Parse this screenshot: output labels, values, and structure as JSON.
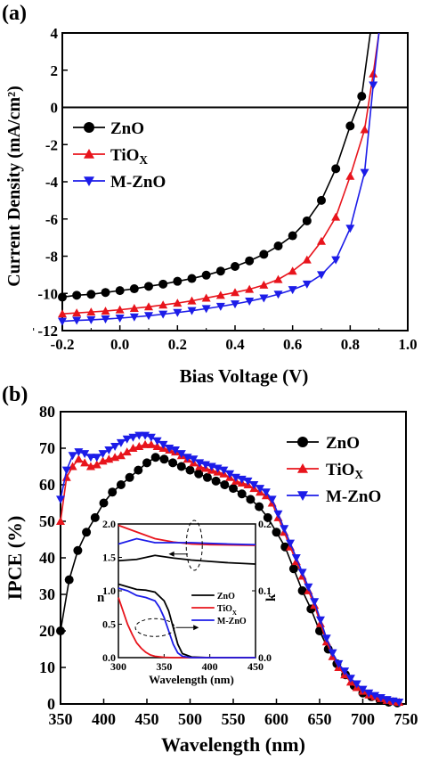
{
  "figure": {
    "panel_a_label": "(a)",
    "panel_b_label": "(b)"
  },
  "chart_data": [
    {
      "id": "a",
      "type": "line",
      "title": "",
      "xlabel": "Bias Voltage (V)",
      "ylabel": "Current Density (mA/cm²)",
      "xlim": [
        -0.2,
        1.0
      ],
      "ylim": [
        -12,
        4
      ],
      "x_ticks": [
        "-0.2",
        "0.0",
        "0.2",
        "0.4",
        "0.6",
        "0.8",
        "1.0"
      ],
      "y_ticks": [
        "-12",
        "-10",
        "-8",
        "-6",
        "-4",
        "-2",
        "0",
        "2",
        "4"
      ],
      "legend_position": "left",
      "series": [
        {
          "name": "ZnO",
          "color": "#000000",
          "marker": "circle",
          "x": [
            -0.2,
            -0.15,
            -0.1,
            -0.05,
            0.0,
            0.05,
            0.1,
            0.15,
            0.2,
            0.25,
            0.3,
            0.35,
            0.4,
            0.45,
            0.5,
            0.55,
            0.6,
            0.65,
            0.7,
            0.75,
            0.8,
            0.84,
            0.87
          ],
          "y": [
            -10.2,
            -10.1,
            -10.05,
            -9.95,
            -9.85,
            -9.75,
            -9.62,
            -9.5,
            -9.35,
            -9.2,
            -9.02,
            -8.8,
            -8.55,
            -8.25,
            -7.9,
            -7.45,
            -6.9,
            -6.1,
            -5.0,
            -3.3,
            -1.0,
            0.6,
            4.0
          ]
        },
        {
          "name": "TiO_X",
          "color": "#e8141c",
          "marker": "triangle-up",
          "x": [
            -0.2,
            -0.15,
            -0.1,
            -0.05,
            0.0,
            0.05,
            0.1,
            0.15,
            0.2,
            0.25,
            0.3,
            0.35,
            0.4,
            0.45,
            0.5,
            0.55,
            0.6,
            0.65,
            0.7,
            0.75,
            0.8,
            0.85,
            0.88,
            0.9
          ],
          "y": [
            -11.1,
            -11.05,
            -11.0,
            -10.95,
            -10.88,
            -10.8,
            -10.72,
            -10.62,
            -10.52,
            -10.4,
            -10.25,
            -10.1,
            -9.95,
            -9.78,
            -9.55,
            -9.25,
            -8.8,
            -8.2,
            -7.2,
            -5.9,
            -3.7,
            -1.2,
            1.8,
            4.0
          ]
        },
        {
          "name": "M-ZnO",
          "color": "#1c1ce8",
          "marker": "triangle-down",
          "x": [
            -0.2,
            -0.15,
            -0.1,
            -0.05,
            0.0,
            0.05,
            0.1,
            0.15,
            0.2,
            0.25,
            0.3,
            0.35,
            0.4,
            0.45,
            0.5,
            0.55,
            0.6,
            0.65,
            0.7,
            0.75,
            0.8,
            0.85,
            0.88,
            0.9
          ],
          "y": [
            -11.5,
            -11.45,
            -11.42,
            -11.38,
            -11.33,
            -11.27,
            -11.2,
            -11.12,
            -11.03,
            -10.93,
            -10.82,
            -10.7,
            -10.57,
            -10.42,
            -10.25,
            -10.05,
            -9.8,
            -9.5,
            -9.0,
            -8.2,
            -6.5,
            -3.5,
            1.2,
            4.0
          ]
        }
      ]
    },
    {
      "id": "b",
      "type": "line",
      "title": "",
      "xlabel": "Wavelength (nm)",
      "ylabel": "IPCE (%)",
      "xlim": [
        350,
        750
      ],
      "ylim": [
        0,
        80
      ],
      "x_ticks": [
        "350",
        "400",
        "450",
        "500",
        "550",
        "600",
        "650",
        "700",
        "750"
      ],
      "y_ticks": [
        "0",
        "10",
        "20",
        "30",
        "40",
        "50",
        "60",
        "70",
        "80"
      ],
      "legend_position": "top-right",
      "series": [
        {
          "name": "ZnO",
          "color": "#000000",
          "marker": "circle",
          "x": [
            350,
            360,
            370,
            380,
            390,
            400,
            410,
            420,
            430,
            440,
            450,
            460,
            470,
            480,
            490,
            500,
            510,
            520,
            530,
            540,
            550,
            560,
            570,
            580,
            590,
            600,
            610,
            620,
            630,
            640,
            650,
            660,
            670,
            680,
            690,
            700,
            710,
            720,
            730,
            740
          ],
          "y": [
            20,
            34,
            42,
            47,
            51,
            55,
            58,
            60,
            62,
            64,
            66,
            67.5,
            67,
            66,
            65,
            64,
            63,
            62,
            61,
            60,
            59,
            57.5,
            56,
            54,
            51,
            47,
            43,
            37,
            31,
            26,
            20,
            15,
            11,
            8,
            5,
            3,
            2,
            1,
            0.5,
            0.3
          ]
        },
        {
          "name": "TiO_X",
          "color": "#e8141c",
          "marker": "triangle-up",
          "x": [
            350,
            357,
            364,
            371,
            378,
            385,
            392,
            399,
            406,
            413,
            420,
            427,
            434,
            441,
            448,
            455,
            462,
            469,
            476,
            483,
            490,
            497,
            504,
            511,
            518,
            525,
            532,
            539,
            546,
            553,
            560,
            567,
            574,
            581,
            588,
            595,
            602,
            609,
            616,
            623,
            630,
            637,
            644,
            651,
            658,
            665,
            672,
            679,
            686,
            693,
            700,
            707,
            714,
            721,
            728,
            735,
            742
          ],
          "y": [
            50,
            62,
            65,
            67,
            66,
            65,
            65.5,
            66.5,
            67,
            67.5,
            68,
            69,
            70,
            70.5,
            71,
            71,
            70.5,
            70,
            69.5,
            69,
            68,
            67,
            66,
            65,
            64.5,
            64,
            63.5,
            63,
            62,
            61,
            60.5,
            60,
            59,
            58,
            57,
            55,
            51,
            47,
            43,
            39,
            35,
            31,
            27,
            22,
            17,
            13,
            10,
            8,
            6,
            4.5,
            3.5,
            2.5,
            2,
            1.5,
            1,
            0.7,
            0.5
          ]
        },
        {
          "name": "M-ZnO",
          "color": "#1c1ce8",
          "marker": "triangle-down",
          "x": [
            350,
            357,
            364,
            371,
            378,
            385,
            392,
            399,
            406,
            413,
            420,
            427,
            434,
            441,
            448,
            455,
            462,
            469,
            476,
            483,
            490,
            497,
            504,
            511,
            518,
            525,
            532,
            539,
            546,
            553,
            560,
            567,
            574,
            581,
            588,
            595,
            602,
            609,
            616,
            623,
            630,
            637,
            644,
            651,
            658,
            665,
            672,
            679,
            686,
            693,
            700,
            707,
            714,
            721,
            728,
            735,
            742
          ],
          "y": [
            56,
            64,
            68,
            69,
            68.5,
            67.5,
            67.5,
            68.5,
            69.5,
            70.5,
            71.5,
            72.5,
            73,
            73.5,
            73.5,
            73,
            72,
            71,
            70,
            69.5,
            68.5,
            67.5,
            67,
            66,
            65.5,
            65,
            64.5,
            64,
            63,
            62,
            61.5,
            61,
            60,
            59,
            58,
            56,
            52,
            48,
            44,
            40,
            36,
            32,
            28,
            23,
            18,
            14,
            11,
            9,
            7,
            5.5,
            4,
            3,
            2.3,
            1.7,
            1.2,
            0.8,
            0.5
          ]
        }
      ],
      "inset": {
        "xlabel": "Wavelength (nm)",
        "ylabel_left": "n",
        "ylabel_right": "k",
        "xlim": [
          300,
          450
        ],
        "ylim_left": [
          0.0,
          2.0
        ],
        "ylim_right": [
          0.0,
          0.2
        ],
        "x_ticks": [
          "300",
          "350",
          "400",
          "450"
        ],
        "y_ticks_left": [
          "0.0",
          "0.5",
          "1.0",
          "1.5",
          "2.0"
        ],
        "y_ticks_right": [
          "0.0",
          "0.1",
          "0.2"
        ],
        "legend": [
          "ZnO",
          "TiO_X",
          "M-ZnO"
        ],
        "series_n": [
          {
            "name": "ZnO",
            "color": "#000000",
            "x": [
              300,
              320,
              340,
              360,
              380,
              400,
              420,
              450
            ],
            "y": [
              1.45,
              1.47,
              1.53,
              1.49,
              1.46,
              1.44,
              1.42,
              1.4
            ]
          },
          {
            "name": "TiO_X",
            "color": "#e8141c",
            "x": [
              300,
              320,
              340,
              360,
              380,
              400,
              450
            ],
            "y": [
              1.98,
              1.88,
              1.78,
              1.73,
              1.7,
              1.69,
              1.68
            ]
          },
          {
            "name": "M-ZnO",
            "color": "#1c1ce8",
            "x": [
              300,
              320,
              340,
              360,
              380,
              400,
              420,
              450
            ],
            "y": [
              1.7,
              1.78,
              1.72,
              1.72,
              1.72,
              1.71,
              1.7,
              1.69
            ]
          }
        ],
        "series_k": [
          {
            "name": "ZnO",
            "color": "#000000",
            "x": [
              300,
              310,
              320,
              330,
              340,
              350,
              355,
              360,
              365,
              370,
              380,
              400,
              450
            ],
            "y": [
              0.11,
              0.106,
              0.102,
              0.101,
              0.098,
              0.085,
              0.07,
              0.045,
              0.02,
              0.006,
              0.001,
              0.0,
              0.0
            ]
          },
          {
            "name": "TiO_X",
            "color": "#e8141c",
            "x": [
              300,
              305,
              310,
              315,
              320,
              325,
              330,
              335,
              340,
              350,
              360,
              380,
              450
            ],
            "y": [
              0.09,
              0.07,
              0.05,
              0.035,
              0.022,
              0.014,
              0.008,
              0.004,
              0.002,
              0.0005,
              0.0,
              0.0,
              0.0
            ]
          },
          {
            "name": "M-ZnO",
            "color": "#1c1ce8",
            "x": [
              300,
              310,
              320,
              330,
              340,
              345,
              350,
              355,
              360,
              365,
              370,
              380,
              450
            ],
            "y": [
              0.104,
              0.1,
              0.093,
              0.09,
              0.085,
              0.075,
              0.06,
              0.04,
              0.02,
              0.007,
              0.002,
              0.0,
              0.0
            ]
          }
        ]
      }
    }
  ]
}
